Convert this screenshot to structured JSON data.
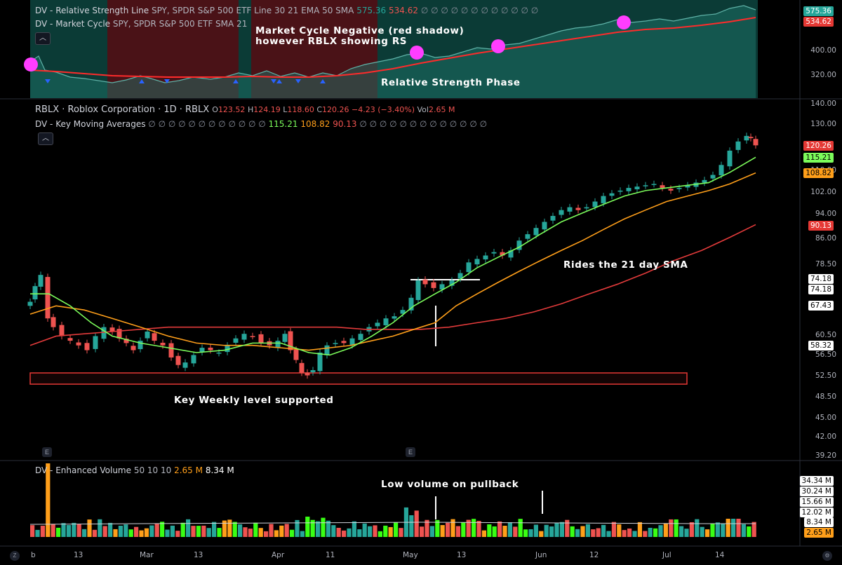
{
  "rs_pane": {
    "legend1": {
      "name": "DV - Relative Strength Line",
      "params": "SPY, SPDR S&P 500 ETF Line 30 21 EMA 50 SMA",
      "v1": "575.36",
      "v2": "534.62",
      "placeholders": "∅ ∅ ∅ ∅ ∅ ∅ ∅ ∅ ∅ ∅ ∅ ∅"
    },
    "legend2": {
      "name": "DV - Market Cycle",
      "params": "SPY, SPDR S&P 500 ETF SMA 21"
    },
    "axis": [
      "400.00",
      "320.00"
    ],
    "tags": [
      "575.36",
      "534.62"
    ],
    "annotation1_line1": "Market Cycle Negative (red shadow)",
    "annotation1_line2": "however RBLX showing RS",
    "annotation2": "Relative Strength Phase"
  },
  "price_pane": {
    "symbol": "RBLX · Roblox Corporation · 1D · RBLX",
    "ohlc": {
      "o_label": "O",
      "o": "123.52",
      "h_label": "H",
      "h": "124.19",
      "l_label": "L",
      "l": "118.60",
      "c_label": "C",
      "c": "120.26",
      "chg": "−4.23 (−3.40%)",
      "vol_label": "Vol",
      "vol": "2.65 M"
    },
    "ma_legend": {
      "name": "DV - Key Moving Averages",
      "placeholders_a": "∅ ∅ ∅ ∅ ∅ ∅ ∅ ∅ ∅ ∅ ∅ ∅",
      "v1": "115.21",
      "v2": "108.82",
      "v3": "90.13",
      "placeholders_b": "∅ ∅ ∅ ∅ ∅ ∅ ∅ ∅ ∅ ∅ ∅ ∅ ∅"
    },
    "axis": [
      "140.00",
      "130.00",
      "110.00",
      "102.00",
      "94.00",
      "86.00",
      "78.50",
      "60.50",
      "56.50",
      "52.50",
      "48.50",
      "45.00",
      "42.00",
      "39.20"
    ],
    "tags": {
      "price": "120.26",
      "ma1": "115.21",
      "ma2": "108.82",
      "ma3": "90.13",
      "a": "74.18",
      "b": "74.18",
      "c": "67.43",
      "d": "58.32"
    },
    "annotation_rides": "Rides the 21 day SMA",
    "annotation_support": "Key Weekly level supported",
    "earnings_badge": "E"
  },
  "volume_pane": {
    "legend": {
      "name": "DV - Enhanced Volume",
      "params": "50 10 10",
      "v1": "2.65 M",
      "v2": "8.34 M"
    },
    "tags": [
      "34.34 M",
      "30.24 M",
      "15.66 M",
      "12.02 M",
      "8.34 M",
      "2.65 M"
    ],
    "annotation": "Low volume on pullback"
  },
  "x_axis": {
    "labels": [
      "b",
      "13",
      "Mar",
      "13",
      "Apr",
      "11",
      "May",
      "13",
      "Jun",
      "12",
      "Jul",
      "14"
    ],
    "left_icon": "Z",
    "right_icon": "⚙"
  },
  "colors": {
    "up": "#26a69a",
    "down": "#ef5350",
    "ma_fast": "#7cfc5b",
    "ma_mid": "#ff9f1a",
    "ma_slow": "#e33b3b",
    "rs_line": "#26a69a",
    "rs_avg": "#ff2b2b",
    "magenta": "#ff3dff"
  },
  "chart_data": {
    "type": "candlestick",
    "symbol": "RBLX",
    "interval": "1D",
    "ylim": [
      39.2,
      140
    ],
    "last": {
      "open": 123.52,
      "high": 124.19,
      "low": 118.6,
      "close": 120.26,
      "volume": "2.65 M"
    },
    "moving_averages": [
      {
        "value": 115.21
      },
      {
        "value": 108.82
      },
      {
        "value": 90.13
      }
    ],
    "key_level": 52.5,
    "resistance_level": 74.18
  }
}
